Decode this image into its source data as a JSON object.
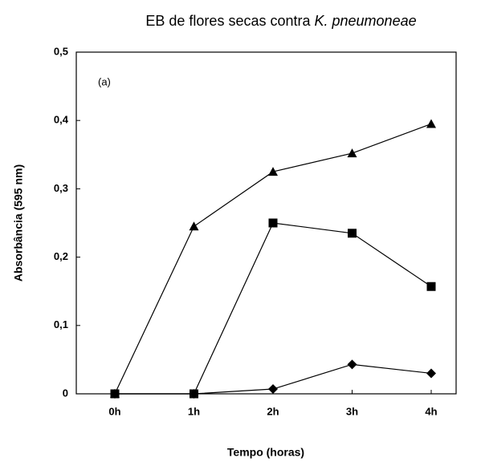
{
  "chart_data": {
    "type": "line",
    "title": [
      "EB de flores secas contra",
      "K. pneumoneae"
    ],
    "annotation": "(a)",
    "x_label": "Tempo (horas)",
    "y_label": "Absorbância (595 nm)",
    "categories": [
      "0h",
      "1h",
      "2h",
      "3h",
      "4h"
    ],
    "series": [
      {
        "marker": "triangle",
        "color": "#000000",
        "values": [
          0,
          0.245,
          0.325,
          0.352,
          0.395
        ]
      },
      {
        "marker": "square",
        "color": "#000000",
        "values": [
          0,
          0,
          0.25,
          0.235,
          0.157
        ]
      },
      {
        "marker": "diamond",
        "color": "#000000",
        "values": [
          0,
          0,
          0.007,
          0.043,
          0.03
        ]
      }
    ],
    "ylim": [
      0,
      0.5
    ],
    "yticks": [
      0,
      {
        "value": 0.1,
        "label": "0,1"
      },
      {
        "value": 0.2,
        "label": "0,2"
      },
      {
        "value": 0.3,
        "label": "0,3"
      },
      {
        "value": 0.4,
        "label": "0,4"
      },
      {
        "value": 0.5,
        "label": "0,5"
      }
    ],
    "grid": false
  }
}
